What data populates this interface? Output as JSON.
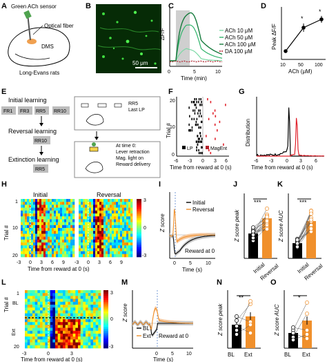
{
  "panels": {
    "A": {
      "label": "A",
      "sensor": "Green ACh sensor",
      "fiber": "Optical fiber",
      "region": "DMS",
      "animal": "Long-Evans rats"
    },
    "B": {
      "label": "B",
      "scale": "50 μm"
    },
    "C": {
      "label": "C",
      "ylabel": "ΔF/F",
      "xlabel": "Time (min)",
      "xticks": [
        "0",
        "5",
        "10"
      ],
      "legend": [
        "ACh 10  μM",
        "ACh 50  μM",
        "ACh 100 μM",
        "DA 100  μM"
      ]
    },
    "D": {
      "label": "D",
      "ylabel": "Peak ΔF/F",
      "xlabel": "ACh (μM)",
      "xticks": [
        "10",
        "50",
        "100"
      ],
      "star1": "*",
      "star2": "*"
    },
    "E": {
      "label": "E",
      "initial": "Initial learning",
      "stages": [
        "FR1",
        "FR3",
        "RR5",
        "RR10"
      ],
      "reversal": "Reversal learning",
      "rr10": "RR10",
      "extinction": "Extinction learning",
      "rr5": "RR5",
      "box_top_label": "RR5\nLast LP",
      "box_bottom_label": "At time 0:\nLever retraction\nMag. light on\nReward delivery"
    },
    "F": {
      "label": "F",
      "ylabel": "Trial #",
      "yticks": [
        "20",
        "10",
        "0"
      ],
      "xticks": [
        "-6",
        "-3",
        "0",
        "3",
        "6"
      ],
      "xlabel": "Time   from reward at 0 (s)",
      "lp": "LP",
      "magent": "MagEnt"
    },
    "G": {
      "label": "G",
      "ylabel": "Distribution",
      "xticks": [
        "-6",
        "-3",
        "0",
        "3",
        "6"
      ],
      "xlabel": "Time  from reward at 0 (s)"
    },
    "H": {
      "label": "H",
      "title_left": "Initial",
      "title_right": "Reversal",
      "ylabel": "Trial #",
      "yticks": [
        "1",
        "10",
        "20"
      ],
      "xticks_left": [
        "-3",
        "0",
        "3",
        "6",
        "9"
      ],
      "xticks_right": [
        "-3",
        "0",
        "3",
        "6",
        "9"
      ],
      "xlabel": "Time   from reward at 0 (s)",
      "cbar": [
        "3",
        "0",
        "-3"
      ]
    },
    "I": {
      "label": "I",
      "ylabel": "Z score",
      "xlabel": "Time (s)",
      "xticks": [
        "0",
        "5",
        "10"
      ],
      "legend": [
        "Initial",
        "Reversal"
      ],
      "note": "Reward at 0"
    },
    "J": {
      "label": "J",
      "ylabel": "Z score peak",
      "categories": [
        "Initial",
        "Reversal"
      ],
      "sig": "***"
    },
    "K": {
      "label": "K",
      "ylabel": "Z score AUC",
      "categories": [
        "Initial",
        "Reversal"
      ],
      "sig": "***"
    },
    "L": {
      "label": "L",
      "ylabel": "Trial #",
      "yticks": [
        "1",
        "20"
      ],
      "bl": "BL",
      "ext": "Ext",
      "xticks": [
        "-3",
        "0",
        "3"
      ],
      "xlabel": "Time  from reward at 0 (s)",
      "cbar": [
        "3",
        "0",
        "-3"
      ]
    },
    "M": {
      "label": "M",
      "ylabel": "Z score",
      "xlabel": "Time (s)",
      "xticks": [
        "0",
        "5",
        "10"
      ],
      "legend": [
        "BL",
        "Ext"
      ],
      "note": "Reward at 0"
    },
    "N": {
      "label": "N",
      "ylabel": "Z score peak",
      "categories": [
        "BL",
        "Ext"
      ],
      "sig": "**"
    },
    "O": {
      "label": "O",
      "ylabel": "Z score AUC",
      "categories": [
        "BL",
        "Ext"
      ],
      "sig": "*"
    }
  },
  "colors": {
    "orange": "#f0902c",
    "green1": "#7cd9a5",
    "green2": "#2fb36a",
    "green3": "#157a3c",
    "red": "#b3202a"
  }
}
